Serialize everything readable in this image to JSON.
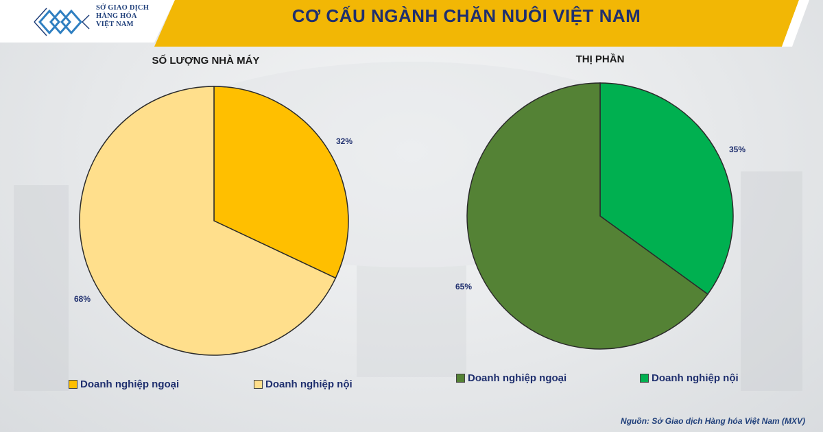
{
  "header": {
    "logo_lines": [
      "SỞ GIAO DỊCH",
      "HÀNG HÓA",
      "VIỆT NAM"
    ],
    "title": "CƠ CẤU NGÀNH CHĂN NUÔI VIỆT NAM",
    "accent_color": "#f2b705",
    "title_color": "#1f2f6e"
  },
  "chart_data": [
    {
      "type": "pie",
      "title": "SỐ LƯỢNG NHÀ MÁY",
      "categories": [
        "Doanh nghiệp ngoại",
        "Doanh nghiệp nội"
      ],
      "values": [
        32,
        68
      ],
      "labels": [
        "32%",
        "68%"
      ],
      "colors": [
        "#ffbf00",
        "#ffdf8c"
      ],
      "legend": "bottom"
    },
    {
      "type": "pie",
      "title": "THỊ PHẦN",
      "categories": [
        "Doanh nghiệp ngoại",
        "Doanh nghiệp nội"
      ],
      "values": [
        65,
        35
      ],
      "labels": [
        "65%",
        "35%"
      ],
      "colors": [
        "#548235",
        "#00b050"
      ],
      "legend": "bottom"
    }
  ],
  "source": "Nguồn: Sở Giao dịch Hàng hóa Việt Nam (MXV)"
}
